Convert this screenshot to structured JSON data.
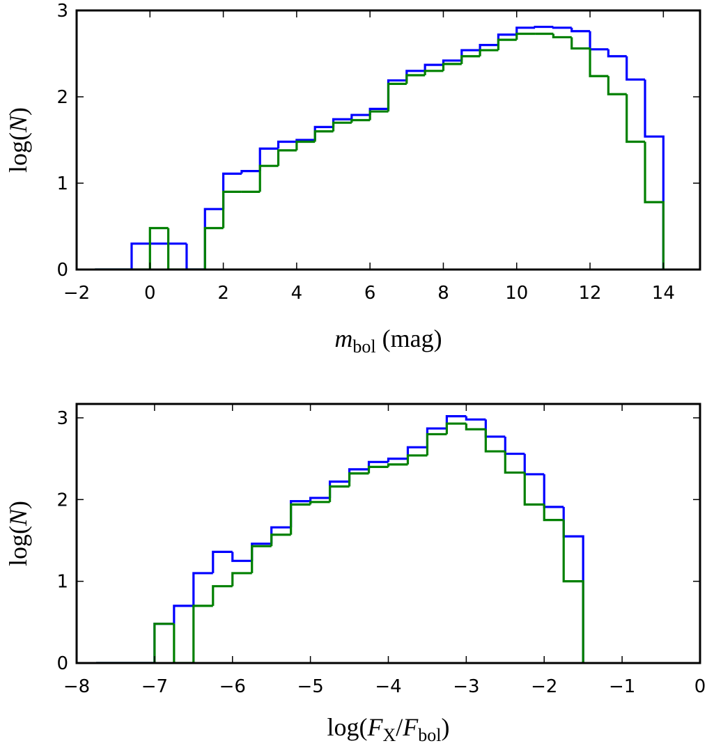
{
  "chart_data": [
    {
      "type": "histogram",
      "histtype": "step",
      "xlabel": [
        {
          "text": "m",
          "italic": true
        },
        {
          "text": "bol",
          "sub": true
        },
        {
          "text": " (mag)"
        }
      ],
      "ylabel": [
        {
          "text": "log("
        },
        {
          "text": "N",
          "italic": true
        },
        {
          "text": ")"
        }
      ],
      "bins": [
        -1.5,
        -1,
        -0.5,
        0,
        0.5,
        1,
        1.5,
        2,
        2.5,
        3,
        3.5,
        4,
        4.5,
        5,
        5.5,
        6,
        6.5,
        7,
        7.5,
        8,
        8.5,
        9,
        9.5,
        10,
        10.5,
        11,
        11.5,
        12,
        12.5,
        13,
        13.5,
        14
      ],
      "series": [
        {
          "color": "#0000ff",
          "values": [
            0,
            0,
            0.3,
            0.3,
            0.3,
            0,
            0.7,
            1.11,
            1.14,
            1.4,
            1.48,
            1.5,
            1.65,
            1.74,
            1.79,
            1.86,
            2.19,
            2.3,
            2.37,
            2.42,
            2.54,
            2.6,
            2.72,
            2.8,
            2.81,
            2.8,
            2.76,
            2.55,
            2.47,
            2.2,
            1.54
          ]
        },
        {
          "color": "#008000",
          "values": [
            0,
            0,
            0,
            0.48,
            0,
            0,
            0.48,
            0.9,
            0.9,
            1.2,
            1.38,
            1.48,
            1.6,
            1.7,
            1.73,
            1.83,
            2.15,
            2.25,
            2.3,
            2.38,
            2.47,
            2.54,
            2.66,
            2.73,
            2.73,
            2.69,
            2.56,
            2.24,
            2.03,
            1.48,
            0.78
          ]
        }
      ],
      "xlim": [
        -2,
        15
      ],
      "xticks": [
        {
          "value": -2,
          "label": "−2"
        },
        0,
        2,
        4,
        6,
        8,
        10,
        12,
        14
      ],
      "ylim": [
        0,
        3
      ],
      "yticks": [
        0,
        1,
        2,
        3
      ]
    },
    {
      "type": "histogram",
      "histtype": "step",
      "xlabel": [
        {
          "text": "log("
        },
        {
          "text": "F",
          "italic": true
        },
        {
          "text": "X",
          "sub": true
        },
        {
          "text": "/"
        },
        {
          "text": "F",
          "italic": true
        },
        {
          "text": "bol",
          "sub": true
        },
        {
          "text": ")"
        }
      ],
      "ylabel": [
        {
          "text": "log("
        },
        {
          "text": "N",
          "italic": true
        },
        {
          "text": ")"
        }
      ],
      "bins": [
        -7.75,
        -7.5,
        -7.25,
        -7,
        -6.75,
        -6.5,
        -6.25,
        -6,
        -5.75,
        -5.5,
        -5.25,
        -5,
        -4.75,
        -4.5,
        -4.25,
        -4,
        -3.75,
        -3.5,
        -3.25,
        -3,
        -2.75,
        -2.5,
        -2.25,
        -2,
        -1.75,
        -1.5
      ],
      "series": [
        {
          "color": "#0000ff",
          "values": [
            0,
            0,
            0,
            0.48,
            0.7,
            1.1,
            1.36,
            1.25,
            1.46,
            1.66,
            1.98,
            2.02,
            2.22,
            2.37,
            2.46,
            2.5,
            2.64,
            2.87,
            3.02,
            2.98,
            2.77,
            2.56,
            2.31,
            1.91,
            1.55
          ]
        },
        {
          "color": "#008000",
          "values": [
            0,
            0,
            0,
            0.48,
            0,
            0.7,
            0.94,
            1.1,
            1.43,
            1.57,
            1.94,
            1.97,
            2.16,
            2.32,
            2.4,
            2.43,
            2.54,
            2.8,
            2.93,
            2.86,
            2.59,
            2.33,
            1.94,
            1.75,
            1.0
          ]
        }
      ],
      "xlim": [
        -8,
        0
      ],
      "xticks": [
        {
          "value": -8,
          "label": "−8"
        },
        {
          "value": -7,
          "label": "−7"
        },
        {
          "value": -6,
          "label": "−6"
        },
        {
          "value": -5,
          "label": "−5"
        },
        {
          "value": -4,
          "label": "−4"
        },
        {
          "value": -3,
          "label": "−3"
        },
        {
          "value": -2,
          "label": "−2"
        },
        {
          "value": -1,
          "label": "−1"
        },
        0
      ],
      "ylim": [
        0,
        3.17
      ],
      "yticks": [
        0,
        1,
        2,
        3
      ]
    }
  ]
}
